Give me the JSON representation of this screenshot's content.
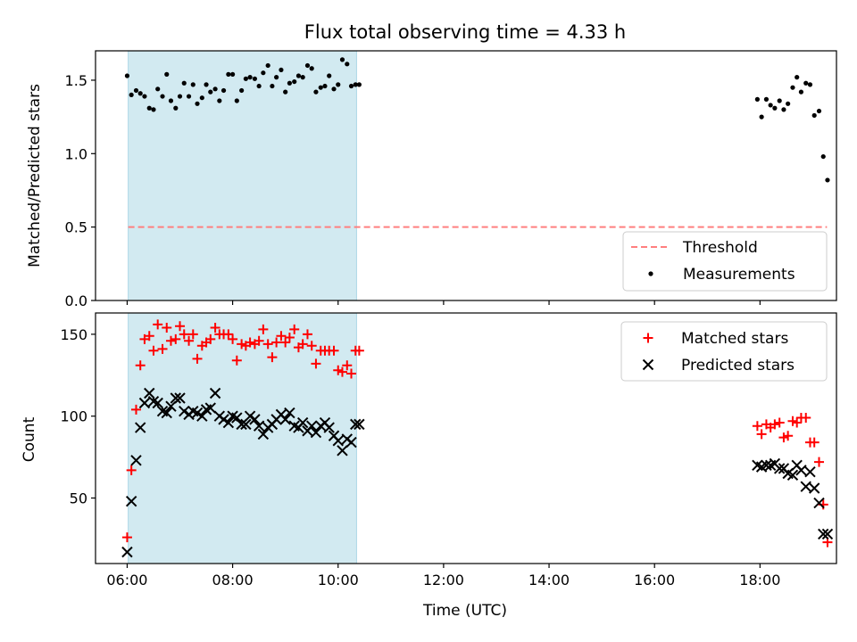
{
  "title": "Flux total observing time = 4.33 h",
  "colors": {
    "threshold": "#ff7f7f",
    "measurements": "#000000",
    "matched": "#ff0000",
    "predicted": "#000000",
    "span": "#add8e6"
  },
  "chart_data": [
    {
      "type": "scatter",
      "ylabel": "Matched/Predicted stars",
      "xlim_hours": [
        5.4,
        19.45
      ],
      "ylim": [
        0,
        1.7
      ],
      "yticks": [
        "0.0",
        "0.5",
        "1.0",
        "1.5"
      ],
      "ytick_values": [
        0,
        0.5,
        1.0,
        1.5
      ],
      "shaded_interval_hours": [
        6.02,
        10.35
      ],
      "legend_position": "lower right",
      "legend": [
        "Threshold",
        "Measurements"
      ],
      "threshold": {
        "name": "Threshold",
        "y": 0.5,
        "x_range_hours": [
          6.02,
          19.27
        ],
        "style": "dashed"
      },
      "series": [
        {
          "name": "Measurements",
          "marker": "dot",
          "x_hours": [
            6.0,
            6.08,
            6.17,
            6.25,
            6.33,
            6.42,
            6.5,
            6.58,
            6.67,
            6.75,
            6.83,
            6.92,
            7.0,
            7.08,
            7.17,
            7.25,
            7.33,
            7.42,
            7.5,
            7.58,
            7.67,
            7.75,
            7.83,
            7.92,
            8.0,
            8.08,
            8.17,
            8.25,
            8.33,
            8.42,
            8.5,
            8.58,
            8.67,
            8.75,
            8.83,
            8.92,
            9.0,
            9.08,
            9.17,
            9.25,
            9.33,
            9.42,
            9.5,
            9.58,
            9.67,
            9.75,
            9.83,
            9.92,
            10.0,
            10.08,
            10.17,
            10.25,
            10.33,
            10.4,
            17.95,
            18.03,
            18.12,
            18.2,
            18.28,
            18.37,
            18.45,
            18.53,
            18.62,
            18.7,
            18.78,
            18.87,
            18.95,
            19.03,
            19.12,
            19.2,
            19.28
          ],
          "y": [
            1.53,
            1.4,
            1.43,
            1.41,
            1.39,
            1.31,
            1.3,
            1.44,
            1.39,
            1.54,
            1.36,
            1.31,
            1.39,
            1.48,
            1.39,
            1.47,
            1.34,
            1.38,
            1.47,
            1.42,
            1.44,
            1.36,
            1.43,
            1.54,
            1.54,
            1.36,
            1.43,
            1.51,
            1.52,
            1.51,
            1.46,
            1.55,
            1.6,
            1.46,
            1.52,
            1.57,
            1.42,
            1.48,
            1.49,
            1.53,
            1.52,
            1.6,
            1.58,
            1.42,
            1.45,
            1.46,
            1.53,
            1.44,
            1.47,
            1.64,
            1.61,
            1.46,
            1.47,
            1.47,
            1.37,
            1.25,
            1.37,
            1.33,
            1.31,
            1.36,
            1.3,
            1.34,
            1.45,
            1.52,
            1.42,
            1.48,
            1.47,
            1.26,
            1.29,
            0.98,
            0.82
          ]
        }
      ]
    },
    {
      "type": "scatter",
      "ylabel": "Count",
      "xlabel": "Time (UTC)",
      "xlim_hours": [
        5.4,
        19.45
      ],
      "ylim": [
        10,
        163
      ],
      "yticks": [
        "50",
        "100",
        "150"
      ],
      "ytick_values": [
        50,
        100,
        150
      ],
      "xticks": [
        "06:00",
        "08:00",
        "10:00",
        "12:00",
        "14:00",
        "16:00",
        "18:00"
      ],
      "xtick_hours": [
        6,
        8,
        10,
        12,
        14,
        16,
        18
      ],
      "shaded_interval_hours": [
        6.02,
        10.35
      ],
      "legend_position": "upper right",
      "legend": [
        "Matched stars",
        "Predicted stars"
      ],
      "series": [
        {
          "name": "Matched stars",
          "marker": "plus",
          "x_hours": [
            6.0,
            6.08,
            6.17,
            6.25,
            6.33,
            6.42,
            6.5,
            6.58,
            6.67,
            6.75,
            6.83,
            6.92,
            7.0,
            7.08,
            7.17,
            7.25,
            7.33,
            7.42,
            7.5,
            7.58,
            7.67,
            7.75,
            7.83,
            7.92,
            8.0,
            8.08,
            8.17,
            8.25,
            8.33,
            8.42,
            8.5,
            8.58,
            8.67,
            8.75,
            8.83,
            8.92,
            9.0,
            9.08,
            9.17,
            9.25,
            9.33,
            9.42,
            9.5,
            9.58,
            9.67,
            9.75,
            9.83,
            9.92,
            10.0,
            10.08,
            10.17,
            10.25,
            10.33,
            10.4,
            17.95,
            18.03,
            18.12,
            18.2,
            18.28,
            18.37,
            18.45,
            18.53,
            18.62,
            18.7,
            18.78,
            18.87,
            18.95,
            19.03,
            19.12,
            19.2,
            19.28
          ],
          "y": [
            26,
            67,
            104,
            131,
            147,
            149,
            140,
            156,
            141,
            154,
            146,
            147,
            155,
            150,
            146,
            150,
            135,
            143,
            145,
            147,
            154,
            150,
            150,
            150,
            147,
            134,
            144,
            143,
            145,
            144,
            146,
            153,
            144,
            136,
            145,
            149,
            145,
            148,
            153,
            142,
            144,
            150,
            143,
            132,
            140,
            140,
            140,
            140,
            128,
            127,
            131,
            126,
            140,
            140,
            94,
            89,
            95,
            93,
            95,
            96,
            87,
            88,
            97,
            96,
            99,
            99,
            84,
            84,
            72,
            46,
            23
          ]
        },
        {
          "name": "Predicted stars",
          "marker": "x",
          "x_hours": [
            6.0,
            6.08,
            6.17,
            6.25,
            6.33,
            6.42,
            6.5,
            6.58,
            6.67,
            6.75,
            6.83,
            6.92,
            7.0,
            7.08,
            7.17,
            7.25,
            7.33,
            7.42,
            7.5,
            7.58,
            7.67,
            7.75,
            7.83,
            7.92,
            8.0,
            8.08,
            8.17,
            8.25,
            8.33,
            8.42,
            8.5,
            8.58,
            8.67,
            8.75,
            8.83,
            8.92,
            9.0,
            9.08,
            9.17,
            9.25,
            9.33,
            9.42,
            9.5,
            9.58,
            9.67,
            9.75,
            9.83,
            9.92,
            10.0,
            10.08,
            10.17,
            10.25,
            10.33,
            10.4,
            17.95,
            18.03,
            18.12,
            18.2,
            18.28,
            18.37,
            18.45,
            18.53,
            18.62,
            18.7,
            18.78,
            18.87,
            18.95,
            19.03,
            19.12,
            19.2,
            19.28
          ],
          "y": [
            17,
            48,
            73,
            93,
            108,
            114,
            109,
            108,
            103,
            102,
            106,
            111,
            111,
            103,
            101,
            103,
            102,
            100,
            104,
            105,
            114,
            100,
            98,
            96,
            100,
            99,
            95,
            95,
            100,
            98,
            94,
            89,
            93,
            95,
            98,
            101,
            98,
            102,
            94,
            93,
            96,
            91,
            94,
            90,
            94,
            96,
            93,
            88,
            85,
            79,
            86,
            84,
            95,
            95,
            70,
            69,
            70,
            70,
            71,
            68,
            68,
            65,
            64,
            70,
            67,
            57,
            66,
            56,
            47,
            28,
            28
          ]
        }
      ]
    }
  ]
}
